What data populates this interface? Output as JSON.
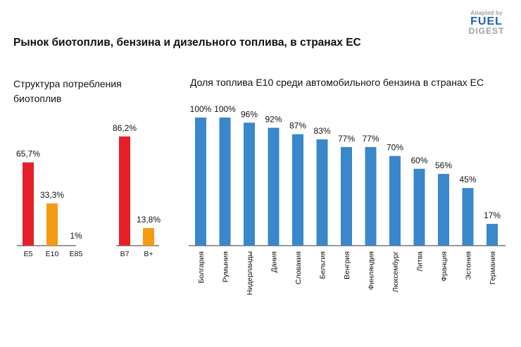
{
  "title": "Рынок биотоплив, бензина и дизельного топлива, в странах ЕС",
  "logo": {
    "top_text": "Adapted by",
    "brand_line1": "FUEL",
    "brand_line2": "DIGEST"
  },
  "colors": {
    "red": "#e5202a",
    "orange": "#f39a12",
    "blue": "#3a87cc",
    "axis": "#333333"
  },
  "chart_data": [
    {
      "type": "bar",
      "title": "Структура потребления биотоплив",
      "groups": [
        {
          "categories": [
            "E5",
            "E10",
            "E85"
          ],
          "values": [
            65.7,
            33.3,
            1
          ],
          "labels": [
            "65,7%",
            "33,3%",
            "1%"
          ],
          "colors": [
            "red",
            "orange",
            "none"
          ]
        },
        {
          "categories": [
            "B7",
            "B+"
          ],
          "values": [
            86.2,
            13.8
          ],
          "labels": [
            "86,2%",
            "13,8%"
          ],
          "colors": [
            "red",
            "orange"
          ]
        }
      ],
      "ylim": [
        0,
        100
      ]
    },
    {
      "type": "bar",
      "title": "Доля топлива E10 среди автомобильного бензина в странах ЕС",
      "categories": [
        "Болгария",
        "Румыния",
        "Нидерланды",
        "Дания",
        "Словакия",
        "Бельгия",
        "Венгрия",
        "Финляндия",
        "Люксембург",
        "Литва",
        "Франция",
        "Эстония",
        "Германия"
      ],
      "values": [
        100,
        100,
        96,
        92,
        87,
        83,
        77,
        77,
        70,
        60,
        56,
        45,
        17
      ],
      "labels": [
        "100%",
        "100%",
        "96%",
        "92%",
        "87%",
        "83%",
        "77%",
        "77%",
        "70%",
        "60%",
        "56%",
        "45%",
        "17%"
      ],
      "ylim": [
        0,
        100
      ]
    }
  ]
}
